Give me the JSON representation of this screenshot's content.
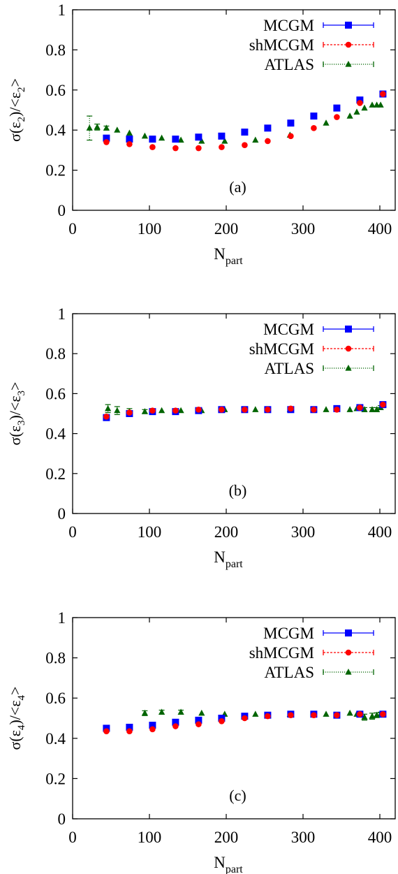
{
  "chart_data": [
    {
      "type": "scatter",
      "panel_label": "(a)",
      "xlabel": "N",
      "xlabel_sub": "part",
      "ylabel_parts": [
        "σ(ε",
        "2",
        ")/<ε",
        "2",
        ">"
      ],
      "xlim": [
        0,
        420
      ],
      "ylim": [
        0,
        1
      ],
      "xticks": [
        0,
        100,
        200,
        300,
        400
      ],
      "yticks": [
        0,
        0.2,
        0.4,
        0.6,
        0.8,
        1
      ],
      "ytick_labels": [
        "0",
        "0.2",
        "0.4",
        "0.6",
        "0.8",
        "1"
      ],
      "grid": false,
      "legend": "top-right",
      "series": [
        {
          "name": "MCGM",
          "color": "#0000ff",
          "marker": "square",
          "line": "solid",
          "x": [
            44,
            74,
            104,
            134,
            164,
            194,
            224,
            254,
            284,
            314,
            344,
            374,
            404
          ],
          "y": [
            0.36,
            0.355,
            0.355,
            0.355,
            0.365,
            0.37,
            0.39,
            0.41,
            0.435,
            0.47,
            0.51,
            0.55,
            0.58
          ]
        },
        {
          "name": "shMCGM",
          "color": "#ff0000",
          "marker": "circle",
          "line": "dashed",
          "x": [
            44,
            74,
            104,
            134,
            164,
            194,
            224,
            254,
            284,
            314,
            344,
            374,
            404
          ],
          "y": [
            0.34,
            0.33,
            0.315,
            0.31,
            0.31,
            0.315,
            0.325,
            0.345,
            0.37,
            0.41,
            0.465,
            0.535,
            0.58
          ]
        },
        {
          "name": "ATLAS",
          "color": "#006400",
          "marker": "triangle",
          "line": "dotted",
          "x": [
            22,
            32,
            44,
            58,
            74,
            94,
            116,
            141,
            168,
            198,
            238,
            283,
            330,
            361,
            370,
            380,
            390,
            396,
            401
          ],
          "y": [
            0.41,
            0.415,
            0.41,
            0.4,
            0.385,
            0.37,
            0.36,
            0.35,
            0.345,
            0.345,
            0.35,
            0.375,
            0.435,
            0.47,
            0.49,
            0.51,
            0.525,
            0.525,
            0.525
          ],
          "err": [
            0.06,
            0.015,
            0.01,
            0.005,
            0.005,
            0.005,
            0.005,
            0.005,
            0.005,
            0.005,
            0.005,
            0.005,
            0.005,
            0.005,
            0.005,
            0.005,
            0.008,
            0.008,
            0.008
          ]
        }
      ]
    },
    {
      "type": "scatter",
      "panel_label": "(b)",
      "xlabel": "N",
      "xlabel_sub": "part",
      "ylabel_parts": [
        "σ(ε",
        "3",
        ")/<ε",
        "3",
        ">"
      ],
      "xlim": [
        0,
        420
      ],
      "ylim": [
        0,
        1
      ],
      "xticks": [
        0,
        100,
        200,
        300,
        400
      ],
      "yticks": [
        0,
        0.2,
        0.4,
        0.6,
        0.8,
        1
      ],
      "ytick_labels": [
        "0",
        "0.2",
        "0.4",
        "0.6",
        "0.8",
        "1"
      ],
      "grid": false,
      "legend": "top-right",
      "series": [
        {
          "name": "MCGM",
          "color": "#0000ff",
          "marker": "square",
          "line": "solid",
          "x": [
            44,
            74,
            104,
            134,
            164,
            194,
            224,
            254,
            284,
            314,
            344,
            374,
            404
          ],
          "y": [
            0.48,
            0.5,
            0.51,
            0.51,
            0.515,
            0.52,
            0.52,
            0.52,
            0.52,
            0.52,
            0.525,
            0.53,
            0.545
          ]
        },
        {
          "name": "shMCGM",
          "color": "#ff0000",
          "marker": "circle",
          "line": "dashed",
          "x": [
            44,
            74,
            104,
            134,
            164,
            194,
            224,
            254,
            284,
            314,
            344,
            374,
            404
          ],
          "y": [
            0.485,
            0.505,
            0.515,
            0.515,
            0.52,
            0.52,
            0.52,
            0.52,
            0.525,
            0.52,
            0.52,
            0.53,
            0.545
          ]
        },
        {
          "name": "ATLAS",
          "color": "#006400",
          "marker": "triangle",
          "line": "dotted",
          "x": [
            46,
            58,
            74,
            94,
            116,
            141,
            168,
            198,
            238,
            283,
            330,
            361,
            370,
            380,
            390,
            396,
            401
          ],
          "y": [
            0.525,
            0.515,
            0.51,
            0.51,
            0.515,
            0.515,
            0.515,
            0.52,
            0.52,
            0.52,
            0.52,
            0.52,
            0.525,
            0.52,
            0.52,
            0.52,
            0.53
          ],
          "err": [
            0.02,
            0.02,
            0.015,
            0.01,
            0.005,
            0.005,
            0.005,
            0.005,
            0.005,
            0.005,
            0.005,
            0.005,
            0.005,
            0.01,
            0.01,
            0.01,
            0.01
          ]
        }
      ]
    },
    {
      "type": "scatter",
      "panel_label": "(c)",
      "xlabel": "N",
      "xlabel_sub": "part",
      "ylabel_parts": [
        "σ(ε",
        "4",
        ")/<ε",
        "4",
        ">"
      ],
      "xlim": [
        0,
        420
      ],
      "ylim": [
        0,
        1
      ],
      "xticks": [
        0,
        100,
        200,
        300,
        400
      ],
      "yticks": [
        0,
        0.2,
        0.4,
        0.6,
        0.8,
        1
      ],
      "ytick_labels": [
        "0",
        "0.2",
        "0.4",
        "0.6",
        "0.8",
        "1"
      ],
      "grid": false,
      "legend": "top-right",
      "series": [
        {
          "name": "MCGM",
          "color": "#0000ff",
          "marker": "square",
          "line": "solid",
          "x": [
            44,
            74,
            104,
            134,
            164,
            194,
            224,
            254,
            284,
            314,
            344,
            374,
            404
          ],
          "y": [
            0.45,
            0.455,
            0.465,
            0.48,
            0.49,
            0.5,
            0.51,
            0.515,
            0.52,
            0.52,
            0.515,
            0.52,
            0.52
          ]
        },
        {
          "name": "shMCGM",
          "color": "#ff0000",
          "marker": "circle",
          "line": "dashed",
          "x": [
            44,
            74,
            104,
            134,
            164,
            194,
            224,
            254,
            284,
            314,
            344,
            374,
            404
          ],
          "y": [
            0.435,
            0.435,
            0.445,
            0.46,
            0.47,
            0.485,
            0.5,
            0.51,
            0.515,
            0.515,
            0.515,
            0.52,
            0.52
          ]
        },
        {
          "name": "ATLAS",
          "color": "#006400",
          "marker": "triangle",
          "line": "dotted",
          "x": [
            94,
            116,
            141,
            168,
            198,
            238,
            283,
            330,
            361,
            370,
            380,
            390,
            396,
            401
          ],
          "y": [
            0.525,
            0.53,
            0.53,
            0.525,
            0.52,
            0.52,
            0.52,
            0.52,
            0.525,
            0.52,
            0.505,
            0.51,
            0.515,
            0.52
          ],
          "err": [
            0.012,
            0.01,
            0.01,
            0.008,
            0.005,
            0.005,
            0.005,
            0.005,
            0.005,
            0.005,
            0.015,
            0.015,
            0.012,
            0.01
          ]
        }
      ]
    }
  ]
}
